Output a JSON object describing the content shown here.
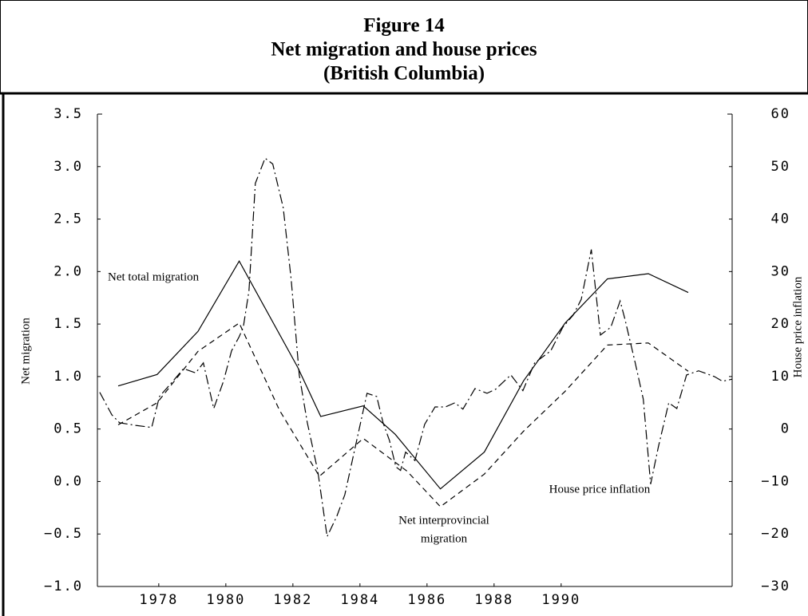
{
  "chart_data": {
    "type": "line",
    "title_lines": [
      "Figure 14",
      "Net migration and house prices",
      "(British Columbia)"
    ],
    "ylabel": "Net migration",
    "y2label": "House price inflation",
    "xlim": [
      1976.17,
      1995.1
    ],
    "xticks": [
      1978,
      1980,
      1982,
      1984,
      1986,
      1988,
      1990
    ],
    "ylim": [
      -1.0,
      3.5
    ],
    "yticks": [
      {
        "value": -1.0,
        "label": "−1.0"
      },
      {
        "value": -0.5,
        "label": "−0.5"
      },
      {
        "value": 0,
        "label": "0.0"
      },
      0.5,
      {
        "value": 1,
        "label": "1.0"
      },
      1.5,
      {
        "value": 2,
        "label": "2.0"
      },
      2.5,
      {
        "value": 3,
        "label": "3.0"
      },
      3.5
    ],
    "y2lim": [
      -30,
      60
    ],
    "y2ticks": [
      {
        "value": -30,
        "label": "−30"
      },
      {
        "value": -20,
        "label": "−20"
      },
      {
        "value": -10,
        "label": "−10"
      },
      0,
      10,
      20,
      30,
      40,
      50,
      60
    ],
    "grid": false,
    "annotations": [
      "Net total migration",
      "Net interprovincial",
      "migration",
      "House price inflation"
    ],
    "series": [
      {
        "name": "Net total migration",
        "color": "#000000",
        "line_style": "solid",
        "axis": "y",
        "x": [
          1976.79,
          1977.95,
          1979.17,
          1980.4,
          1982.14,
          1982.83,
          1984.1,
          1985.05,
          1986.4,
          1987.71,
          1988.88,
          1990.12,
          1991.38,
          1992.6,
          1993.79
        ],
        "values": [
          0.91,
          1.02,
          1.43,
          2.1,
          1.09,
          0.62,
          0.72,
          0.45,
          -0.07,
          0.28,
          0.96,
          1.51,
          1.93,
          1.98,
          1.8
        ]
      },
      {
        "name": "Net interprovincial migration",
        "color": "#000000",
        "line_style": "dashed",
        "axis": "y",
        "x": [
          1976.79,
          1977.95,
          1979.17,
          1980.4,
          1981.6,
          1982.79,
          1984.1,
          1985.4,
          1986.4,
          1987.71,
          1988.88,
          1990.12,
          1991.38,
          1992.6,
          1993.79
        ],
        "values": [
          0.54,
          0.75,
          1.24,
          1.51,
          0.68,
          0.05,
          0.41,
          0.1,
          -0.24,
          0.07,
          0.48,
          0.86,
          1.3,
          1.32,
          1.05
        ]
      },
      {
        "name": "House price inflation",
        "color": "#000000",
        "line_style": "dashdot",
        "axis": "y2",
        "x": [
          1976.24,
          1976.6,
          1976.83,
          1977.31,
          1977.79,
          1978.02,
          1978.38,
          1978.74,
          1979.1,
          1979.33,
          1979.64,
          1979.93,
          1980.17,
          1980.4,
          1980.52,
          1980.69,
          1980.88,
          1981.17,
          1981.4,
          1981.71,
          1981.95,
          1982.19,
          1982.43,
          1982.74,
          1983.02,
          1983.31,
          1983.55,
          1983.86,
          1984.21,
          1984.5,
          1984.69,
          1984.88,
          1985.07,
          1985.21,
          1985.36,
          1985.64,
          1985.93,
          1986.24,
          1986.55,
          1986.83,
          1987.07,
          1987.43,
          1987.79,
          1988.05,
          1988.5,
          1988.86,
          1989.21,
          1989.69,
          1990.05,
          1990.36,
          1990.6,
          1990.9,
          1991.17,
          1991.48,
          1991.76,
          1991.9,
          1992.21,
          1992.45,
          1992.67,
          1992.9,
          1993.21,
          1993.45,
          1993.74,
          1994.1,
          1994.57,
          1994.81,
          1995.1
        ],
        "values": [
          7.0,
          2.7,
          1.2,
          0.7,
          0.3,
          6.2,
          8.8,
          11.5,
          10.7,
          12.6,
          3.9,
          9.1,
          14.9,
          17.6,
          19.4,
          26.3,
          46.8,
          51.6,
          50.5,
          42.2,
          28.5,
          10.3,
          1.2,
          -7.9,
          -20.5,
          -16.6,
          -12.5,
          -3.4,
          6.8,
          6.2,
          1.2,
          -2.2,
          -7.2,
          -7.9,
          -4.4,
          -6.0,
          0.9,
          4.2,
          4.2,
          5.0,
          3.8,
          7.7,
          6.8,
          7.6,
          10.3,
          7.3,
          12.6,
          14.9,
          19.4,
          21.7,
          24.7,
          34.2,
          17.9,
          19.4,
          24.4,
          21.0,
          12.6,
          5.7,
          -10.5,
          -3.4,
          5.0,
          3.9,
          10.3,
          11.1,
          10.0,
          9.1,
          9.5
        ]
      }
    ]
  }
}
